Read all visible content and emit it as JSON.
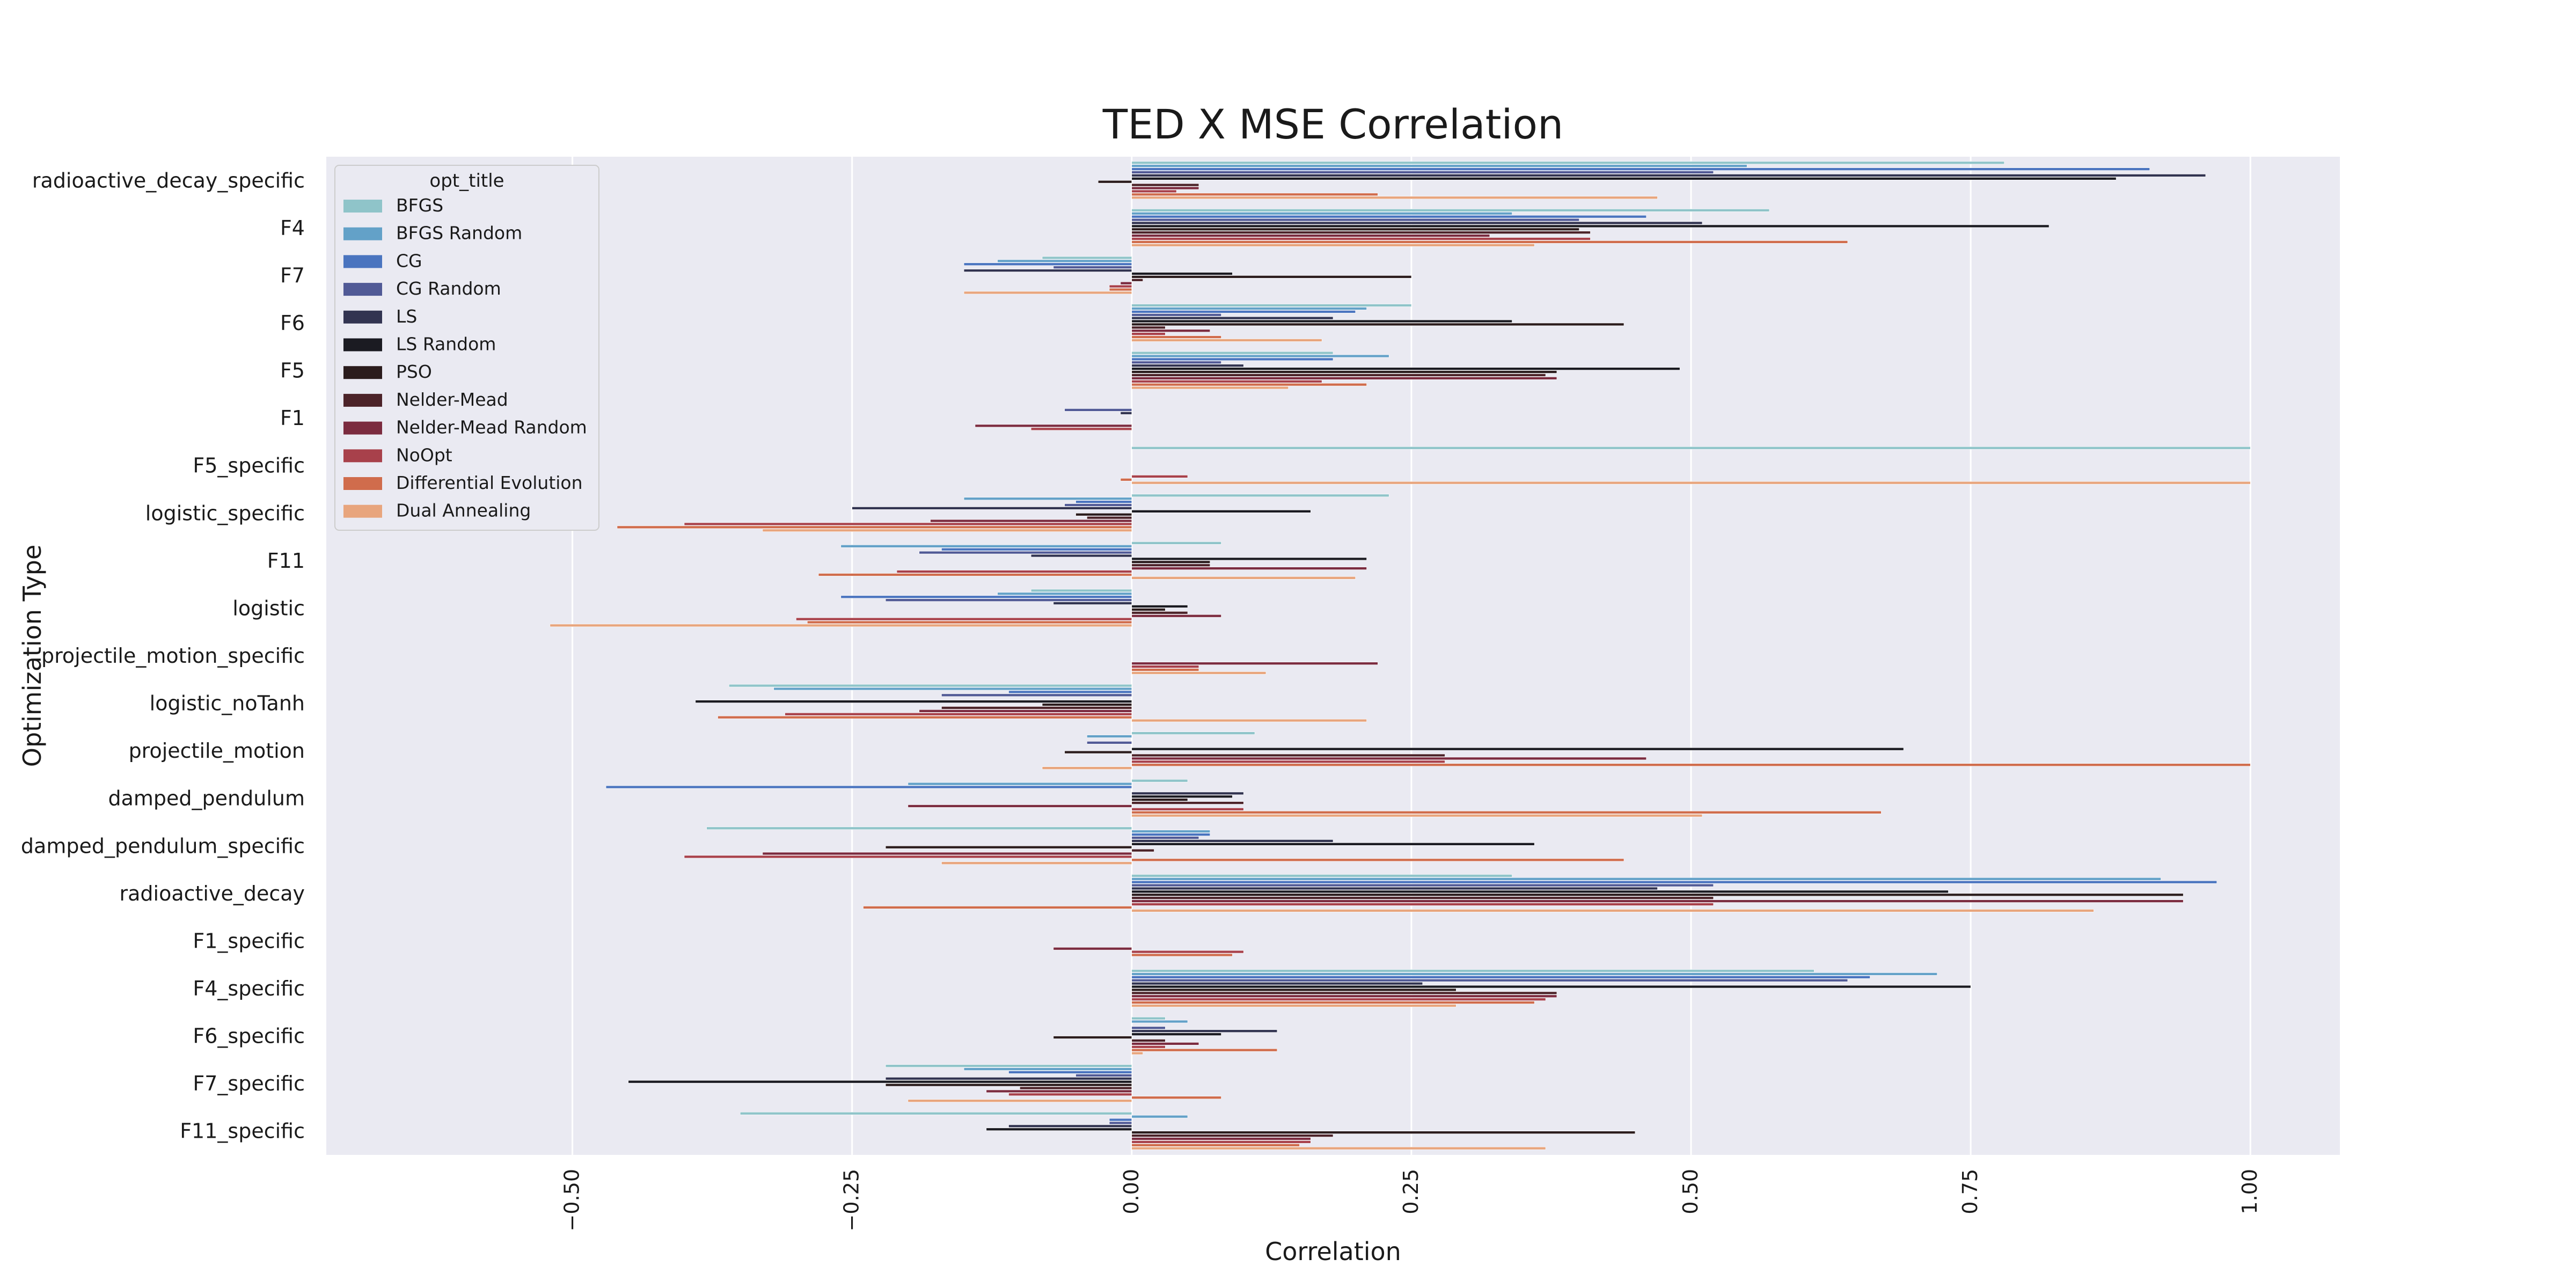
{
  "chart_data": {
    "type": "bar",
    "orientation": "horizontal",
    "title": "TED X MSE Correlation",
    "xlabel": "Correlation",
    "ylabel": "Optimization Type",
    "xlim": [
      -0.72,
      1.08
    ],
    "xticks": [
      -0.5,
      -0.25,
      0.0,
      0.25,
      0.5,
      0.75,
      1.0
    ],
    "xtick_labels": [
      "−0.50",
      "−0.25",
      "0.00",
      "0.25",
      "0.50",
      "0.75",
      "1.00"
    ],
    "grid": true,
    "legend_title": "opt_title",
    "legend_position": "upper-left",
    "categories": [
      "radioactive_decay_specific",
      "F4",
      "F7",
      "F6",
      "F5",
      "F1",
      "F5_specific",
      "logistic_specific",
      "F11",
      "logistic",
      "projectile_motion_specific",
      "logistic_noTanh",
      "projectile_motion",
      "damped_pendulum",
      "damped_pendulum_specific",
      "radioactive_decay",
      "F1_specific",
      "F4_specific",
      "F6_specific",
      "F7_specific",
      "F11_specific"
    ],
    "series": [
      {
        "name": "BFGS",
        "color": "#8fc4c9",
        "values": [
          0.78,
          0.57,
          -0.08,
          0.25,
          0.18,
          0,
          1.0,
          0.23,
          0.08,
          -0.09,
          0,
          -0.36,
          0.11,
          0.05,
          -0.38,
          0.34,
          0,
          0.61,
          0.03,
          -0.22,
          -0.35
        ]
      },
      {
        "name": "BFGS Random",
        "color": "#63a1c8",
        "values": [
          0.55,
          0.34,
          -0.12,
          0.21,
          0.23,
          0,
          0,
          -0.15,
          -0.26,
          -0.12,
          0,
          -0.32,
          -0.04,
          -0.2,
          0.07,
          0.92,
          0,
          0.72,
          0.05,
          -0.15,
          0.05
        ]
      },
      {
        "name": "CG",
        "color": "#4a74bf",
        "values": [
          0.91,
          0.46,
          -0.15,
          0.2,
          0.18,
          0,
          0,
          -0.05,
          -0.17,
          -0.26,
          0,
          -0.11,
          0,
          -0.47,
          0.07,
          0.97,
          0,
          0.66,
          0,
          -0.11,
          -0.02
        ]
      },
      {
        "name": "CG Random",
        "color": "#515a96",
        "values": [
          0.52,
          0.4,
          -0.07,
          0.08,
          0.08,
          -0.06,
          0,
          -0.06,
          -0.19,
          -0.22,
          0,
          -0.17,
          -0.04,
          0,
          0.06,
          0.52,
          0,
          0.64,
          0.03,
          -0.05,
          -0.02
        ]
      },
      {
        "name": "LS",
        "color": "#323451",
        "values": [
          0.96,
          0.51,
          -0.15,
          0.18,
          0.1,
          -0.01,
          0,
          -0.25,
          -0.09,
          -0.07,
          0,
          0,
          0,
          0.1,
          0.18,
          0.47,
          0,
          0.26,
          0.13,
          -0.22,
          -0.11
        ]
      },
      {
        "name": "LS Random",
        "color": "#1b1b22",
        "values": [
          0.88,
          0.82,
          0.09,
          0.34,
          0.49,
          0,
          0,
          0.16,
          0.21,
          0.05,
          0,
          -0.39,
          0.69,
          0.09,
          0.36,
          0.73,
          0,
          0.75,
          0.08,
          -0.45,
          -0.13
        ]
      },
      {
        "name": "PSO",
        "color": "#2b1c1d",
        "values": [
          -0.03,
          0.4,
          0.25,
          0.44,
          0.38,
          0,
          0,
          -0.05,
          0.07,
          0.03,
          0,
          -0.08,
          -0.06,
          0.05,
          -0.22,
          0.94,
          0,
          0.29,
          -0.07,
          -0.22,
          0.45
        ]
      },
      {
        "name": "Nelder-Mead",
        "color": "#4c2329",
        "values": [
          0.06,
          0.41,
          0.01,
          0.03,
          0.37,
          0,
          0,
          -0.04,
          0.07,
          0.05,
          0,
          -0.17,
          0.28,
          0.1,
          0.02,
          0.52,
          0,
          0.38,
          0.03,
          -0.1,
          0.18
        ]
      },
      {
        "name": "Nelder-Mead Random",
        "color": "#7b2b3f",
        "values": [
          0.06,
          0.32,
          -0.01,
          0.07,
          0.38,
          -0.14,
          0,
          -0.18,
          0.21,
          0.08,
          0.22,
          -0.19,
          0.46,
          -0.2,
          -0.33,
          0.94,
          -0.07,
          0.38,
          0.06,
          -0.13,
          0.16
        ]
      },
      {
        "name": "NoOpt",
        "color": "#a8414b",
        "values": [
          0.04,
          0.41,
          -0.02,
          0.03,
          0.17,
          -0.09,
          0.05,
          -0.4,
          -0.21,
          -0.3,
          0.06,
          -0.31,
          0.28,
          0.1,
          -0.4,
          0.52,
          0.1,
          0.37,
          0.03,
          -0.11,
          0.16
        ]
      },
      {
        "name": "Differential Evolution",
        "color": "#d06c4c",
        "values": [
          0.22,
          0.64,
          -0.02,
          0.08,
          0.21,
          0,
          -0.01,
          -0.46,
          -0.28,
          -0.29,
          0.06,
          -0.37,
          1.0,
          0.67,
          0.44,
          -0.24,
          0.09,
          0.36,
          0.13,
          0.08,
          0.15
        ]
      },
      {
        "name": "Dual Annealing",
        "color": "#e8a57d",
        "values": [
          0.47,
          0.36,
          -0.15,
          0.17,
          0.14,
          0,
          1.0,
          -0.33,
          0.2,
          -0.52,
          0.12,
          0.21,
          -0.08,
          0.51,
          -0.17,
          0.86,
          0,
          0.29,
          0.01,
          -0.2,
          0.37
        ]
      }
    ]
  }
}
